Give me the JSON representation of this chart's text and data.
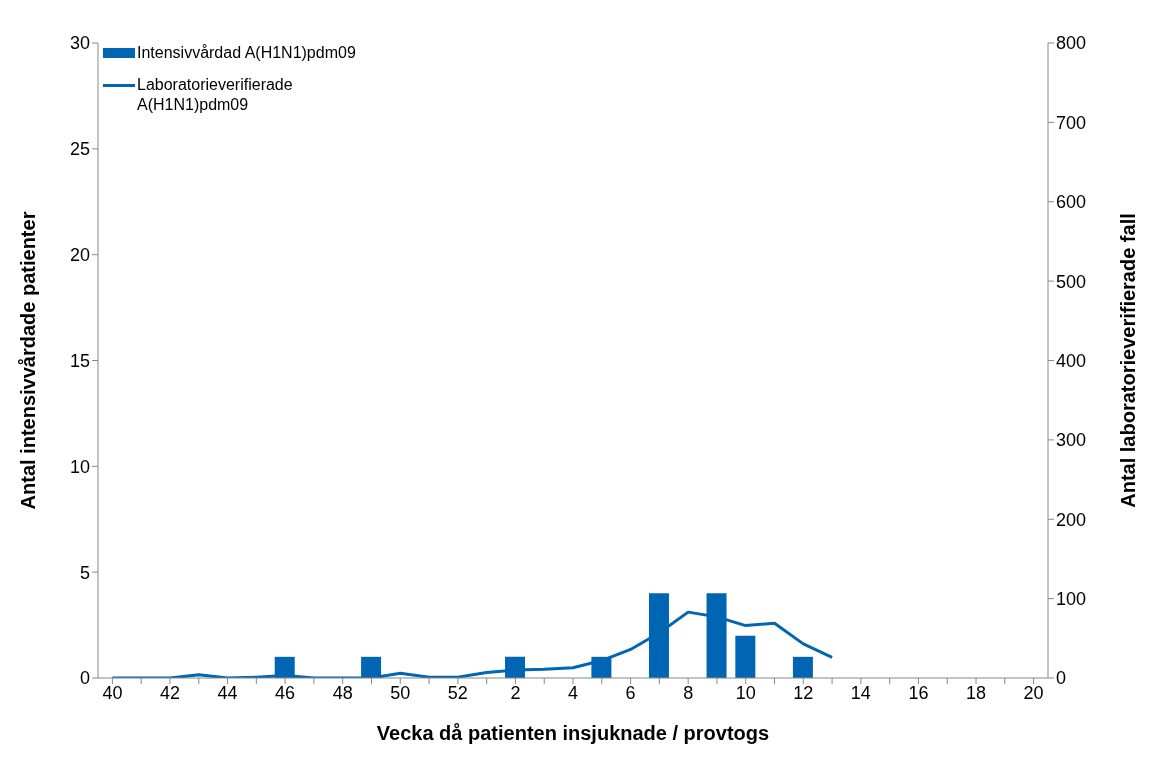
{
  "chart_data": {
    "type": "bar",
    "xlabel": "Vecka då patienten insjuknade / provtogs",
    "ylabel": "Antal intensivvårdade patienter",
    "y2label": "Antal laboratorieverifierade fall",
    "categories": [
      "40",
      null,
      "42",
      null,
      "44",
      null,
      "46",
      null,
      "48",
      null,
      "50",
      null,
      "52",
      null,
      "2",
      null,
      "4",
      null,
      "6",
      null,
      "8",
      null,
      "10",
      null,
      "12",
      null,
      "14",
      null,
      "16",
      null,
      "18",
      null,
      "20"
    ],
    "series": [
      {
        "name": "Intensivvårdad A(H1N1)pdm09",
        "color": "#0066b3",
        "values": [
          0,
          0,
          0,
          0,
          0,
          0,
          1,
          0,
          0,
          1,
          0,
          0,
          0,
          0,
          1,
          0,
          0,
          1,
          0,
          4,
          0,
          4,
          2,
          0,
          1,
          0,
          0,
          0,
          0,
          0,
          0,
          0,
          0
        ]
      },
      {
        "name": "Laboratorieverifierade A(H1N1)pdm09",
        "type": "line",
        "axis": "y2",
        "color": "#0066b3",
        "values": [
          0,
          0,
          0,
          4,
          0,
          1,
          3,
          0,
          0,
          0,
          6,
          1,
          1,
          7,
          10,
          11,
          13,
          22,
          36,
          57,
          83,
          77,
          66,
          69,
          43,
          26,
          null,
          null,
          null,
          null,
          null,
          null,
          null
        ]
      }
    ],
    "ylim": [
      0,
      30
    ],
    "yticks": [
      0,
      5,
      10,
      15,
      20,
      25,
      30
    ],
    "y2lim": [
      0,
      800
    ],
    "y2ticks": [
      0,
      100,
      200,
      300,
      400,
      500,
      600,
      700,
      800
    ],
    "legend": "top left",
    "marker": "none",
    "line_style": "solid"
  }
}
